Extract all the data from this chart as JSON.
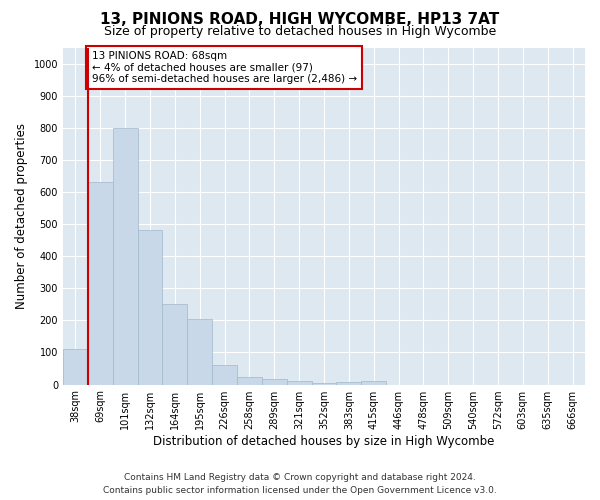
{
  "title": "13, PINIONS ROAD, HIGH WYCOMBE, HP13 7AT",
  "subtitle": "Size of property relative to detached houses in High Wycombe",
  "xlabel": "Distribution of detached houses by size in High Wycombe",
  "ylabel": "Number of detached properties",
  "footer_line1": "Contains HM Land Registry data © Crown copyright and database right 2024.",
  "footer_line2": "Contains public sector information licensed under the Open Government Licence v3.0.",
  "bar_labels": [
    "38sqm",
    "69sqm",
    "101sqm",
    "132sqm",
    "164sqm",
    "195sqm",
    "226sqm",
    "258sqm",
    "289sqm",
    "321sqm",
    "352sqm",
    "383sqm",
    "415sqm",
    "446sqm",
    "478sqm",
    "509sqm",
    "540sqm",
    "572sqm",
    "603sqm",
    "635sqm",
    "666sqm"
  ],
  "bar_values": [
    110,
    630,
    800,
    480,
    250,
    205,
    60,
    25,
    18,
    12,
    5,
    8,
    10,
    0,
    0,
    0,
    0,
    0,
    0,
    0,
    0
  ],
  "bar_color": "#c8d8e8",
  "bar_edge_color": "#a0b8cc",
  "highlight_line_color": "#cc0000",
  "annotation_text": "13 PINIONS ROAD: 68sqm\n← 4% of detached houses are smaller (97)\n96% of semi-detached houses are larger (2,486) →",
  "annotation_box_color": "#ffffff",
  "annotation_box_edge_color": "#cc0000",
  "ylim": [
    0,
    1050
  ],
  "yticks": [
    0,
    100,
    200,
    300,
    400,
    500,
    600,
    700,
    800,
    900,
    1000
  ],
  "background_color": "#ffffff",
  "plot_bg_color": "#dde8f0",
  "grid_color": "#ffffff",
  "title_fontsize": 11,
  "subtitle_fontsize": 9,
  "axis_label_fontsize": 8.5,
  "tick_fontsize": 7,
  "footer_fontsize": 6.5
}
